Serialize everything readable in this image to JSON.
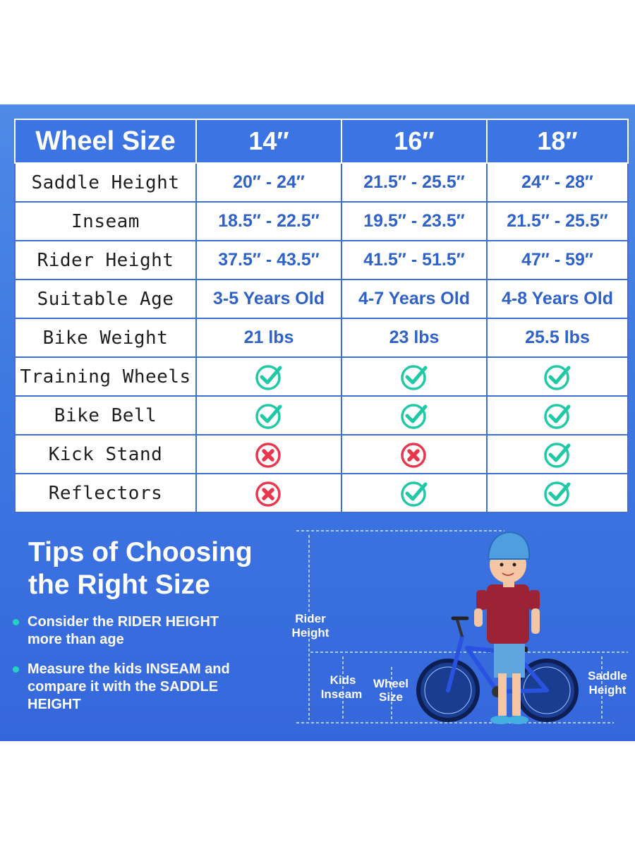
{
  "table": {
    "header": [
      "Wheel Size",
      "14″",
      "16″",
      "18″"
    ],
    "rows": [
      {
        "label": "Saddle Height",
        "values": [
          "20″ - 24″",
          "21.5″ - 25.5″",
          "24″ - 28″"
        ]
      },
      {
        "label": "Inseam",
        "values": [
          "18.5″ - 22.5″",
          "19.5″ - 23.5″",
          "21.5″ - 25.5″"
        ]
      },
      {
        "label": "Rider Height",
        "values": [
          "37.5″ - 43.5″",
          "41.5″ - 51.5″",
          "47″ - 59″"
        ]
      },
      {
        "label": "Suitable Age",
        "values": [
          "3-5 Years Old",
          "4-7 Years Old",
          "4-8 Years Old"
        ]
      },
      {
        "label": "Bike Weight",
        "values": [
          "21 lbs",
          "23 lbs",
          "25.5 lbs"
        ]
      },
      {
        "label": "Training Wheels",
        "icons": [
          "check",
          "check",
          "check"
        ]
      },
      {
        "label": "Bike Bell",
        "icons": [
          "check",
          "check",
          "check"
        ]
      },
      {
        "label": "Kick Stand",
        "icons": [
          "cross",
          "cross",
          "check"
        ]
      },
      {
        "label": "Reflectors",
        "icons": [
          "cross",
          "check",
          "check"
        ]
      }
    ]
  },
  "tips": {
    "title_line1": "Tips of Choosing",
    "title_line2": "the Right Size",
    "tip1_line1": "Consider the RIDER HEIGHT",
    "tip1_line2": "more than age",
    "tip2_line1": "Measure the kids INSEAM and",
    "tip2_line2": "compare it with the SADDLE",
    "tip2_line3": "HEIGHT"
  },
  "diagram": {
    "rider_height": [
      "Rider",
      "Height"
    ],
    "kids_inseam": [
      "Kids",
      "Inseam"
    ],
    "wheel_size": [
      "Wheel",
      "Size"
    ],
    "saddle_height": [
      "Saddle",
      "Height"
    ]
  },
  "colors": {
    "check": "#20c9a6",
    "cross": "#e8374d",
    "header_blue": "#3d74e3",
    "value_blue": "#2f62c8"
  }
}
